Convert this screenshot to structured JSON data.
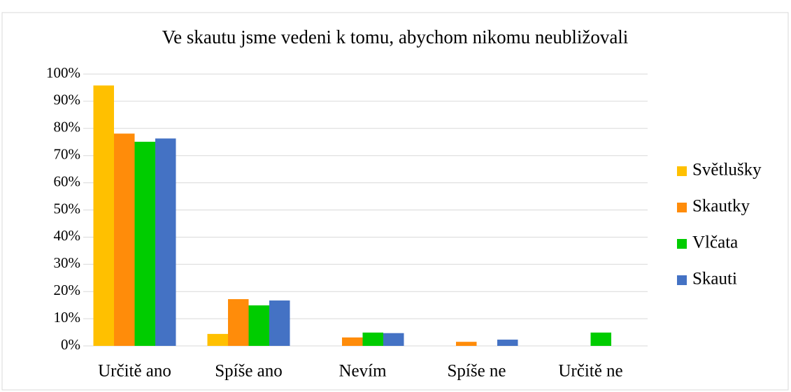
{
  "chart_data": {
    "type": "bar",
    "title": "Ve skautu jsme vedeni k tomu, abychom nikomu neubližovali",
    "categories": [
      "Určitě ano",
      "Spíše ano",
      "Nevím",
      "Spíše ne",
      "Určitě ne"
    ],
    "series": [
      {
        "name": "Světlušky",
        "color": "#FFC000",
        "values": [
          95.8,
          4.4,
          0,
          0,
          0
        ]
      },
      {
        "name": "Skautky",
        "color": "#FF8C0A",
        "values": [
          78.1,
          17.2,
          3.1,
          1.5,
          0
        ]
      },
      {
        "name": "Vlčata",
        "color": "#00CC00",
        "values": [
          75.1,
          14.9,
          4.9,
          0,
          4.9
        ]
      },
      {
        "name": "Skauti",
        "color": "#4472C4",
        "values": [
          76.3,
          16.7,
          4.7,
          2.3,
          0
        ]
      }
    ],
    "ylim": [
      0,
      100
    ],
    "yticks": [
      {
        "value": 0,
        "label": "0%"
      },
      {
        "value": 10,
        "label": "10%"
      },
      {
        "value": 20,
        "label": "20%"
      },
      {
        "value": 30,
        "label": "30%"
      },
      {
        "value": 40,
        "label": "40%"
      },
      {
        "value": 50,
        "label": "50%"
      },
      {
        "value": 60,
        "label": "60%"
      },
      {
        "value": 70,
        "label": "70%"
      },
      {
        "value": 80,
        "label": "80%"
      },
      {
        "value": 90,
        "label": "90%"
      },
      {
        "value": 100,
        "label": "100%"
      }
    ],
    "grid": true,
    "legend": "right"
  }
}
